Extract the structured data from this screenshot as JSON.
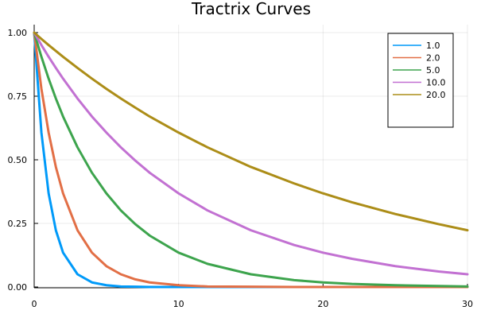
{
  "chart_data": {
    "type": "line",
    "title": "Tractrix Curves",
    "xlabel": "",
    "ylabel": "",
    "xlim": [
      0,
      30
    ],
    "ylim": [
      0,
      1
    ],
    "x_ticks": [
      0,
      10,
      20,
      30
    ],
    "x_tick_labels": [
      "0",
      "10",
      "20",
      "30"
    ],
    "y_ticks": [
      0,
      0.25,
      0.5,
      0.75,
      1.0
    ],
    "y_tick_labels": [
      "0.00",
      "0.25",
      "0.50",
      "0.75",
      "1.00"
    ],
    "grid": true,
    "legend_position": "top-right",
    "x": [
      0,
      0.5,
      1,
      1.5,
      2,
      3,
      4,
      5,
      6,
      7,
      8,
      10,
      12,
      15,
      18,
      20,
      22,
      25,
      28,
      30
    ],
    "series": [
      {
        "name": "1.0",
        "color": "#009AF9",
        "values": [
          1.0,
          0.607,
          0.368,
          0.223,
          0.135,
          0.05,
          0.018,
          0.007,
          0.002,
          0.001,
          0.0,
          0.0,
          0.0,
          0.0,
          0.0,
          0.0,
          0.0,
          0.0,
          0.0,
          0.0
        ]
      },
      {
        "name": "2.0",
        "color": "#E26F46",
        "values": [
          1.0,
          0.779,
          0.607,
          0.472,
          0.368,
          0.223,
          0.135,
          0.082,
          0.05,
          0.03,
          0.018,
          0.007,
          0.002,
          0.001,
          0.0,
          0.0,
          0.0,
          0.0,
          0.0,
          0.0
        ]
      },
      {
        "name": "5.0",
        "color": "#3DA44D",
        "values": [
          1.0,
          0.905,
          0.819,
          0.741,
          0.67,
          0.549,
          0.449,
          0.368,
          0.301,
          0.247,
          0.202,
          0.135,
          0.091,
          0.05,
          0.027,
          0.018,
          0.012,
          0.007,
          0.004,
          0.002
        ]
      },
      {
        "name": "10.0",
        "color": "#C271D2",
        "values": [
          1.0,
          0.951,
          0.905,
          0.861,
          0.819,
          0.741,
          0.67,
          0.607,
          0.549,
          0.497,
          0.449,
          0.368,
          0.301,
          0.223,
          0.165,
          0.135,
          0.111,
          0.082,
          0.061,
          0.05
        ]
      },
      {
        "name": "20.0",
        "color": "#AC8D18",
        "values": [
          1.0,
          0.975,
          0.951,
          0.928,
          0.905,
          0.861,
          0.819,
          0.779,
          0.741,
          0.705,
          0.67,
          0.607,
          0.549,
          0.472,
          0.407,
          0.368,
          0.333,
          0.287,
          0.247,
          0.223
        ]
      }
    ]
  }
}
